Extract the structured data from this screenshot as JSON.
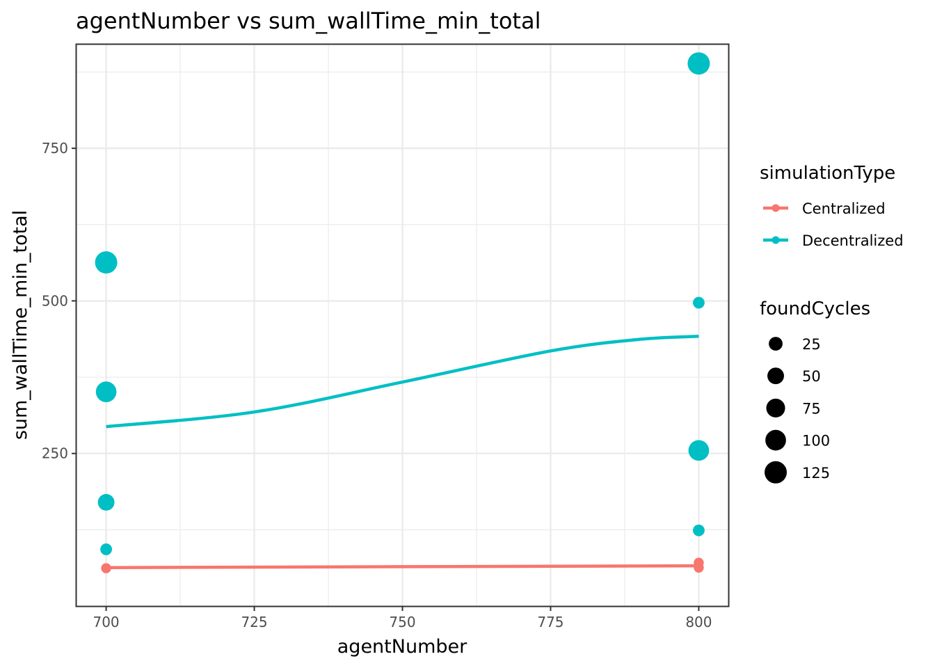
{
  "chart_data": {
    "type": "scatter",
    "title": "agentNumber  vs  sum_wallTime_min_total",
    "xlabel": "agentNumber",
    "ylabel": "sum_wallTime_min_total",
    "xlim": [
      695,
      805
    ],
    "ylim": [
      0,
      920
    ],
    "x_ticks": [
      700,
      725,
      750,
      775,
      800
    ],
    "y_ticks": [
      250,
      500,
      750
    ],
    "grid": true,
    "legend_position": "right",
    "colors": {
      "Centralized": "#F8766D",
      "Decentralized": "#00BFC4"
    },
    "series": [
      {
        "name": "Centralized",
        "points": [
          {
            "x": 700,
            "y": 62,
            "foundCycles": 5
          },
          {
            "x": 800,
            "y": 63,
            "foundCycles": 5
          },
          {
            "x": 800,
            "y": 71,
            "foundCycles": 5
          }
        ],
        "smooth": [
          {
            "x": 700,
            "y": 63
          },
          {
            "x": 800,
            "y": 66
          }
        ]
      },
      {
        "name": "Decentralized",
        "points": [
          {
            "x": 700,
            "y": 563,
            "foundCycles": 125
          },
          {
            "x": 700,
            "y": 351,
            "foundCycles": 100
          },
          {
            "x": 700,
            "y": 170,
            "foundCycles": 50
          },
          {
            "x": 700,
            "y": 93,
            "foundCycles": 12
          },
          {
            "x": 800,
            "y": 889,
            "foundCycles": 125
          },
          {
            "x": 800,
            "y": 497,
            "foundCycles": 12
          },
          {
            "x": 800,
            "y": 255,
            "foundCycles": 100
          },
          {
            "x": 800,
            "y": 124,
            "foundCycles": 12
          }
        ],
        "smooth": [
          {
            "x": 700,
            "y": 294
          },
          {
            "x": 725,
            "y": 318
          },
          {
            "x": 750,
            "y": 367
          },
          {
            "x": 775,
            "y": 418
          },
          {
            "x": 790,
            "y": 437
          },
          {
            "x": 800,
            "y": 442
          }
        ]
      }
    ],
    "legends": {
      "color": {
        "title": "simulationType",
        "entries": [
          "Centralized",
          "Decentralized"
        ]
      },
      "size": {
        "title": "foundCycles",
        "entries": [
          25,
          50,
          75,
          100,
          125
        ],
        "labels": [
          "25",
          "50",
          "75",
          "100",
          "125"
        ]
      }
    }
  }
}
